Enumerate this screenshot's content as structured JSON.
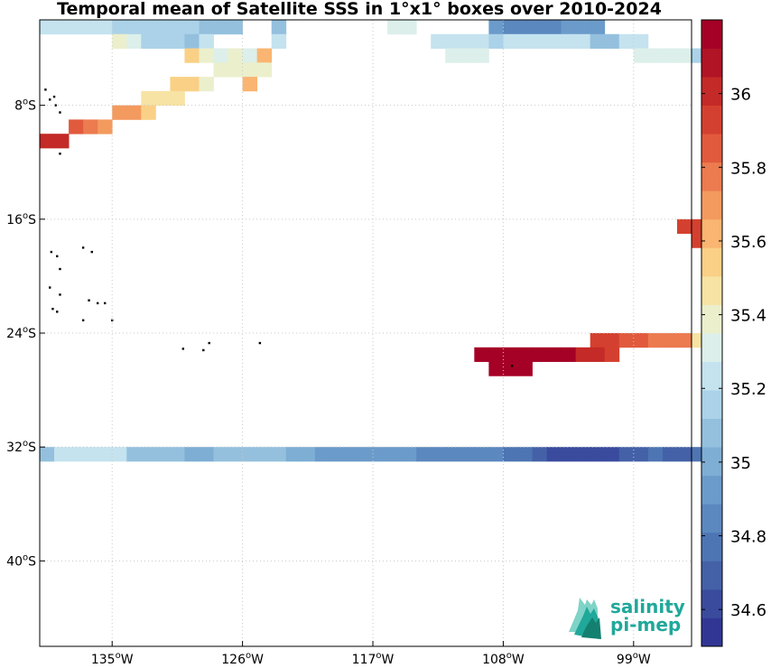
{
  "chart_data": {
    "type": "heatmap",
    "title": "Temporal mean of Satellite SSS in 1°x1° boxes over 2010-2024",
    "lon_range": [
      -140,
      -95
    ],
    "lat_range": [
      -46,
      -2
    ],
    "x_ticks": [
      {
        "value": -135,
        "label": "135°W"
      },
      {
        "value": -126,
        "label": "126°W"
      },
      {
        "value": -117,
        "label": "117°W"
      },
      {
        "value": -108,
        "label": "108°W"
      },
      {
        "value": -99,
        "label": "99°W"
      }
    ],
    "y_ticks": [
      {
        "value": -8,
        "label": "8°S"
      },
      {
        "value": -16,
        "label": "16°S"
      },
      {
        "value": -24,
        "label": "24°S"
      },
      {
        "value": -32,
        "label": "32°S"
      },
      {
        "value": -40,
        "label": "40°S"
      }
    ],
    "grid": true,
    "colorbar": {
      "range": [
        34.5,
        36.2
      ],
      "ticks": [
        34.6,
        34.8,
        35.0,
        35.2,
        35.4,
        35.6,
        35.8,
        36.0
      ],
      "tick_labels": [
        "34.6",
        "34.8",
        "35",
        "35.2",
        "35.4",
        "35.6",
        "35.8",
        "36"
      ],
      "placement": "right",
      "colors": [
        "#313695",
        "#3a4b9e",
        "#4461a8",
        "#4e75b3",
        "#5b88bf",
        "#6b9bca",
        "#7eaed4",
        "#94c0de",
        "#abd2e8",
        "#c4e3ef",
        "#dcefea",
        "#ecefcc",
        "#f7e3a3",
        "#fad086",
        "#f9b571",
        "#f39a5f",
        "#ec7b4f",
        "#e15a3d",
        "#d4402f",
        "#c42a27",
        "#b01425",
        "#a50026"
      ]
    },
    "cells_units": "lon_west_edge, lat_north_edge, SSS (psu); 1x1 degree boxes",
    "cells": [
      [
        -140,
        -2,
        35.24
      ],
      [
        -139,
        -2,
        35.24
      ],
      [
        -138,
        -2,
        35.24
      ],
      [
        -137,
        -2,
        35.24
      ],
      [
        -136,
        -2,
        35.24
      ],
      [
        -135,
        -2,
        35.14
      ],
      [
        -134,
        -2,
        35.14
      ],
      [
        -133,
        -2,
        35.14
      ],
      [
        -132,
        -2,
        35.18
      ],
      [
        -131,
        -2,
        35.18
      ],
      [
        -130,
        -2,
        35.18
      ],
      [
        -129,
        -2,
        35.1
      ],
      [
        -128,
        -2,
        35.1
      ],
      [
        -127,
        -2,
        35.1
      ],
      [
        -124,
        -2,
        35.1
      ],
      [
        -116,
        -2,
        35.32
      ],
      [
        -115,
        -2,
        35.32
      ],
      [
        -109,
        -2,
        34.96
      ],
      [
        -108,
        -2,
        34.84
      ],
      [
        -107,
        -2,
        34.84
      ],
      [
        -106,
        -2,
        34.84
      ],
      [
        -105,
        -2,
        34.84
      ],
      [
        -104,
        -2,
        34.9
      ],
      [
        -103,
        -2,
        34.9
      ],
      [
        -102,
        -2,
        34.9
      ],
      [
        -135,
        -3,
        35.38
      ],
      [
        -134,
        -3,
        35.28
      ],
      [
        -133,
        -3,
        35.18
      ],
      [
        -132,
        -3,
        35.18
      ],
      [
        -131,
        -3,
        35.18
      ],
      [
        -130,
        -3,
        35.1
      ],
      [
        -129,
        -3,
        35.24
      ],
      [
        -124,
        -3,
        35.24
      ],
      [
        -113,
        -3,
        35.24
      ],
      [
        -112,
        -3,
        35.24
      ],
      [
        -111,
        -3,
        35.24
      ],
      [
        -110,
        -3,
        35.24
      ],
      [
        -109,
        -3,
        35.14
      ],
      [
        -108,
        -3,
        35.2
      ],
      [
        -107,
        -3,
        35.2
      ],
      [
        -106,
        -3,
        35.2
      ],
      [
        -105,
        -3,
        35.2
      ],
      [
        -104,
        -3,
        35.2
      ],
      [
        -103,
        -3,
        35.2
      ],
      [
        -102,
        -3,
        35.08
      ],
      [
        -101,
        -3,
        35.08
      ],
      [
        -100,
        -3,
        35.2
      ],
      [
        -99,
        -3,
        35.26
      ],
      [
        -130,
        -4,
        35.52
      ],
      [
        -129,
        -4,
        35.4
      ],
      [
        -128,
        -4,
        35.34
      ],
      [
        -127,
        -4,
        35.38
      ],
      [
        -126,
        -4,
        35.34
      ],
      [
        -125,
        -4,
        35.6
      ],
      [
        -112,
        -4,
        35.3
      ],
      [
        -111,
        -4,
        35.3
      ],
      [
        -110,
        -4,
        35.3
      ],
      [
        -99,
        -4,
        35.3
      ],
      [
        -98,
        -4,
        35.3
      ],
      [
        -97,
        -4,
        35.3
      ],
      [
        -96,
        -4,
        35.3
      ],
      [
        -95,
        -4,
        35.14
      ],
      [
        -128,
        -5,
        35.4
      ],
      [
        -127,
        -5,
        35.4
      ],
      [
        -126,
        -5,
        35.4
      ],
      [
        -125,
        -5,
        35.36
      ],
      [
        -126,
        -6,
        35.6
      ],
      [
        -131,
        -6,
        35.52
      ],
      [
        -130,
        -6,
        35.52
      ],
      [
        -129,
        -6,
        35.38
      ],
      [
        -133,
        -7,
        35.48
      ],
      [
        -132,
        -7,
        35.48
      ],
      [
        -131,
        -7,
        35.48
      ],
      [
        -135,
        -8,
        35.68
      ],
      [
        -134,
        -8,
        35.68
      ],
      [
        -133,
        -8,
        35.58
      ],
      [
        -138,
        -9,
        35.86
      ],
      [
        -137,
        -9,
        35.78
      ],
      [
        -136,
        -9,
        35.68
      ],
      [
        -140,
        -10,
        36.0
      ],
      [
        -139,
        -10,
        36.0
      ],
      [
        -96,
        -16,
        35.96
      ],
      [
        -95,
        -16,
        35.96
      ],
      [
        -95,
        -17,
        35.96
      ],
      [
        -102,
        -24,
        35.96
      ],
      [
        -101,
        -24,
        35.96
      ],
      [
        -100,
        -24,
        35.84
      ],
      [
        -99,
        -24,
        35.84
      ],
      [
        -98,
        -24,
        35.78
      ],
      [
        -97,
        -24,
        35.78
      ],
      [
        -96,
        -24,
        35.78
      ],
      [
        -95,
        -24,
        35.5
      ],
      [
        -110,
        -25,
        36.14
      ],
      [
        -109,
        -25,
        36.14
      ],
      [
        -108,
        -25,
        36.14
      ],
      [
        -107,
        -25,
        36.14
      ],
      [
        -106,
        -25,
        36.14
      ],
      [
        -105,
        -25,
        36.14
      ],
      [
        -104,
        -25,
        36.14
      ],
      [
        -103,
        -25,
        36.02
      ],
      [
        -102,
        -25,
        36.02
      ],
      [
        -101,
        -25,
        35.96
      ],
      [
        -109,
        -26,
        36.14
      ],
      [
        -108,
        -26,
        36.14
      ],
      [
        -107,
        -26,
        36.14
      ],
      [
        -140,
        -32,
        35.08
      ],
      [
        -139,
        -32,
        35.22
      ],
      [
        -138,
        -32,
        35.22
      ],
      [
        -137,
        -32,
        35.22
      ],
      [
        -136,
        -32,
        35.22
      ],
      [
        -135,
        -32,
        35.22
      ],
      [
        -134,
        -32,
        35.1
      ],
      [
        -133,
        -32,
        35.1
      ],
      [
        -132,
        -32,
        35.1
      ],
      [
        -131,
        -32,
        35.1
      ],
      [
        -130,
        -32,
        35.02
      ],
      [
        -129,
        -32,
        35.02
      ],
      [
        -128,
        -32,
        35.1
      ],
      [
        -127,
        -32,
        35.1
      ],
      [
        -126,
        -32,
        35.1
      ],
      [
        -125,
        -32,
        35.1
      ],
      [
        -124,
        -32,
        35.1
      ],
      [
        -123,
        -32,
        35.02
      ],
      [
        -122,
        -32,
        35.02
      ],
      [
        -121,
        -32,
        34.92
      ],
      [
        -120,
        -32,
        34.92
      ],
      [
        -119,
        -32,
        34.92
      ],
      [
        -118,
        -32,
        34.92
      ],
      [
        -117,
        -32,
        34.92
      ],
      [
        -116,
        -32,
        34.92
      ],
      [
        -115,
        -32,
        34.92
      ],
      [
        -114,
        -32,
        34.86
      ],
      [
        -113,
        -32,
        34.86
      ],
      [
        -112,
        -32,
        34.86
      ],
      [
        -111,
        -32,
        34.86
      ],
      [
        -110,
        -32,
        34.86
      ],
      [
        -109,
        -32,
        34.86
      ],
      [
        -108,
        -32,
        34.76
      ],
      [
        -107,
        -32,
        34.76
      ],
      [
        -106,
        -32,
        34.7
      ],
      [
        -105,
        -32,
        34.64
      ],
      [
        -104,
        -32,
        34.64
      ],
      [
        -103,
        -32,
        34.58
      ],
      [
        -102,
        -32,
        34.58
      ],
      [
        -101,
        -32,
        34.64
      ],
      [
        -100,
        -32,
        34.7
      ],
      [
        -99,
        -32,
        34.7
      ],
      [
        -98,
        -32,
        34.76
      ],
      [
        -97,
        -32,
        34.7
      ],
      [
        -96,
        -32,
        34.7
      ],
      [
        -95,
        -32,
        34.76
      ]
    ],
    "islands": [
      [
        -139.6,
        -6.9
      ],
      [
        -139.3,
        -7.6
      ],
      [
        -139.0,
        -7.4
      ],
      [
        -138.9,
        -8.0
      ],
      [
        -138.6,
        -8.5
      ],
      [
        -138.6,
        -11.4
      ],
      [
        -139.2,
        -18.3
      ],
      [
        -138.8,
        -18.6
      ],
      [
        -138.6,
        -19.5
      ],
      [
        -137.0,
        -18.0
      ],
      [
        -136.4,
        -18.3
      ],
      [
        -139.3,
        -20.8
      ],
      [
        -138.6,
        -21.3
      ],
      [
        -136.6,
        -21.7
      ],
      [
        -136.0,
        -21.9
      ],
      [
        -135.5,
        -21.9
      ],
      [
        -139.1,
        -22.3
      ],
      [
        -138.8,
        -22.5
      ],
      [
        -137.0,
        -23.1
      ],
      [
        -135.0,
        -23.1
      ],
      [
        -130.1,
        -25.1
      ],
      [
        -128.3,
        -24.7
      ],
      [
        -128.7,
        -25.2
      ],
      [
        -124.8,
        -24.7
      ],
      [
        -107.4,
        -26.3
      ]
    ],
    "logo": {
      "line1": "salinity",
      "line2": "pi-mep",
      "colors": [
        "#20a89a",
        "#14806f"
      ]
    }
  }
}
